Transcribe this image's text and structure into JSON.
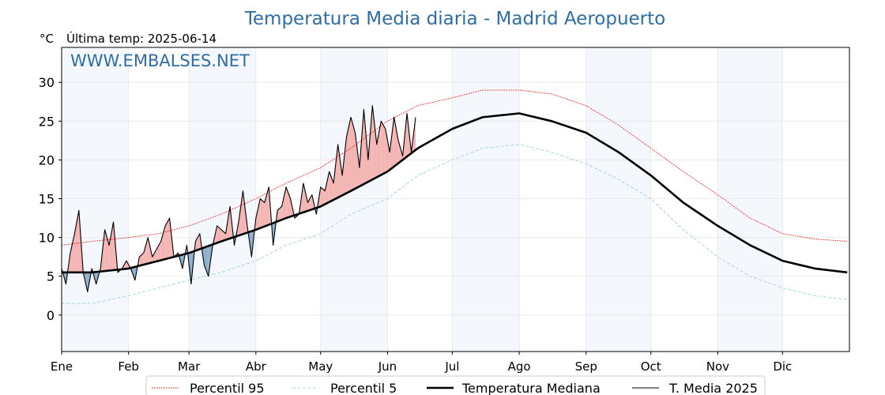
{
  "chart_data": {
    "type": "line",
    "title": "Temperatura Media diaria - Madrid Aeropuerto",
    "unit": "°C",
    "subtitle": "Última temp: 2025-06-14",
    "watermark": "WWW.EMBALSES.NET",
    "ylim": [
      -4.7,
      34.5
    ],
    "yticks": [
      0,
      5,
      10,
      15,
      20,
      25,
      30
    ],
    "xlim": [
      1,
      366
    ],
    "month_labels": [
      "Ene",
      "Feb",
      "Mar",
      "Abr",
      "May",
      "Jun",
      "Jul",
      "Ago",
      "Sep",
      "Oct",
      "Nov",
      "Dic"
    ],
    "month_start_days": [
      1,
      32,
      60,
      91,
      121,
      152,
      182,
      213,
      244,
      274,
      305,
      335
    ],
    "grid": true,
    "legend_position": "bottom",
    "series": [
      {
        "name": "Percentil 95",
        "style": "dotted",
        "color": "#ff0000",
        "x": [
          1,
          15,
          32,
          46,
          60,
          75,
          91,
          105,
          121,
          135,
          152,
          166,
          182,
          196,
          213,
          228,
          244,
          259,
          274,
          289,
          305,
          320,
          335,
          350,
          365
        ],
        "values": [
          9.0,
          9.5,
          10.0,
          10.5,
          11.5,
          13.0,
          15.0,
          17.0,
          19.0,
          21.5,
          25.0,
          27.0,
          28.0,
          29.0,
          29.0,
          28.5,
          27.0,
          24.5,
          21.5,
          18.5,
          15.5,
          12.5,
          10.5,
          9.8,
          9.5
        ]
      },
      {
        "name": "Percentil 5",
        "style": "dashed",
        "color": "#add8e6",
        "x": [
          1,
          15,
          32,
          46,
          60,
          75,
          91,
          105,
          121,
          135,
          152,
          166,
          182,
          196,
          213,
          228,
          244,
          259,
          274,
          289,
          305,
          320,
          335,
          350,
          365
        ],
        "values": [
          1.5,
          1.5,
          2.5,
          3.5,
          4.5,
          5.5,
          7.0,
          9.0,
          10.5,
          13.0,
          15.0,
          18.0,
          20.0,
          21.5,
          22.0,
          21.0,
          19.5,
          17.5,
          15.0,
          11.0,
          7.5,
          5.0,
          3.5,
          2.5,
          2.0
        ]
      },
      {
        "name": "Temperatura Mediana",
        "style": "solid",
        "color": "#000000",
        "x": [
          1,
          15,
          32,
          46,
          60,
          75,
          91,
          105,
          121,
          135,
          152,
          166,
          182,
          196,
          213,
          228,
          244,
          259,
          274,
          289,
          305,
          320,
          335,
          350,
          365
        ],
        "values": [
          5.5,
          5.5,
          6.0,
          7.0,
          8.0,
          9.5,
          11.0,
          12.5,
          14.0,
          16.0,
          18.5,
          21.5,
          24.0,
          25.5,
          26.0,
          25.0,
          23.5,
          21.0,
          18.0,
          14.5,
          11.5,
          9.0,
          7.0,
          6.0,
          5.5
        ]
      },
      {
        "name": "T. Media 2025",
        "style": "solid-thin",
        "color": "#000000",
        "x": [
          1,
          3,
          5,
          7,
          9,
          11,
          13,
          15,
          17,
          19,
          21,
          23,
          25,
          27,
          29,
          31,
          33,
          35,
          37,
          39,
          41,
          43,
          45,
          47,
          49,
          51,
          53,
          55,
          57,
          59,
          61,
          63,
          65,
          67,
          69,
          71,
          73,
          75,
          77,
          79,
          81,
          83,
          85,
          87,
          89,
          91,
          93,
          95,
          97,
          99,
          101,
          103,
          105,
          107,
          109,
          111,
          113,
          115,
          117,
          119,
          121,
          123,
          125,
          127,
          129,
          131,
          133,
          135,
          137,
          139,
          141,
          143,
          145,
          147,
          149,
          151,
          153,
          155,
          157,
          159,
          161,
          163,
          165
        ],
        "values": [
          6.0,
          4.0,
          8.0,
          10.5,
          13.5,
          5.5,
          3.0,
          6.0,
          4.0,
          6.0,
          11.0,
          9.0,
          12.0,
          5.5,
          6.0,
          7.0,
          6.0,
          4.5,
          7.5,
          8.0,
          10.0,
          7.5,
          8.5,
          9.5,
          11.5,
          12.5,
          7.5,
          8.0,
          6.0,
          9.0,
          4.0,
          9.5,
          10.5,
          6.5,
          5.0,
          9.0,
          11.5,
          11.0,
          10.5,
          14.0,
          9.0,
          12.0,
          16.0,
          11.5,
          7.5,
          12.5,
          15.0,
          14.5,
          16.5,
          9.0,
          13.5,
          14.0,
          16.5,
          15.0,
          12.5,
          13.0,
          17.0,
          14.5,
          15.5,
          13.0,
          16.5,
          16.0,
          18.5,
          17.0,
          22.0,
          18.0,
          23.0,
          25.5,
          23.5,
          19.0,
          26.5,
          20.0,
          27.0,
          22.0,
          25.0,
          24.0,
          21.0,
          25.5,
          22.5,
          20.5,
          26.0,
          21.0,
          25.5
        ]
      }
    ]
  }
}
